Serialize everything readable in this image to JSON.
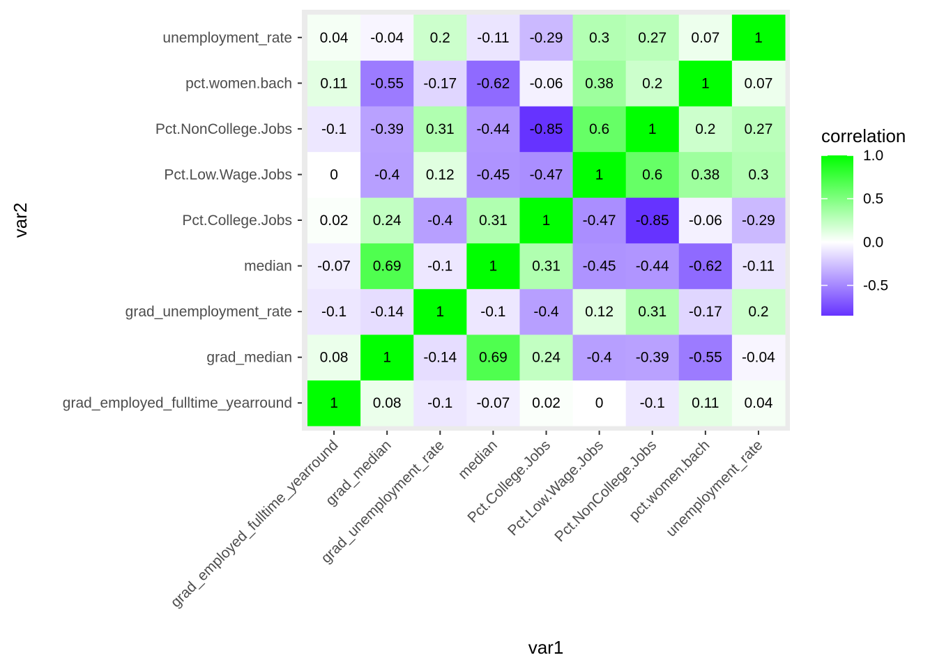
{
  "chart_data": {
    "type": "heatmap",
    "title": "",
    "xlabel": "var1",
    "ylabel": "var2",
    "variables": [
      "grad_employed_fulltime_yearround",
      "grad_median",
      "grad_unemployment_rate",
      "median",
      "Pct.College.Jobs",
      "Pct.Low.Wage.Jobs",
      "Pct.NonCollege.Jobs",
      "pct.women.bach",
      "unemployment_rate"
    ],
    "matrix": [
      [
        1,
        0.08,
        -0.1,
        -0.07,
        0.02,
        0,
        -0.1,
        0.11,
        0.04
      ],
      [
        0.08,
        1,
        -0.14,
        0.69,
        0.24,
        -0.4,
        -0.39,
        -0.55,
        -0.04
      ],
      [
        -0.1,
        -0.14,
        1,
        -0.1,
        -0.4,
        0.12,
        0.31,
        -0.17,
        0.2
      ],
      [
        -0.07,
        0.69,
        -0.1,
        1,
        0.31,
        -0.45,
        -0.44,
        -0.62,
        -0.11
      ],
      [
        0.02,
        0.24,
        -0.4,
        0.31,
        1,
        -0.47,
        -0.85,
        -0.06,
        -0.29
      ],
      [
        0,
        -0.4,
        0.12,
        -0.45,
        -0.47,
        1,
        0.6,
        0.38,
        0.3
      ],
      [
        -0.1,
        -0.39,
        0.31,
        -0.44,
        -0.85,
        0.6,
        1,
        0.2,
        0.27
      ],
      [
        0.11,
        -0.55,
        -0.17,
        -0.62,
        -0.06,
        0.38,
        0.2,
        1,
        0.07
      ],
      [
        0.04,
        -0.04,
        0.2,
        -0.11,
        -0.29,
        0.3,
        0.27,
        0.07,
        1
      ]
    ],
    "legend": {
      "title": "correlation",
      "ticks": [
        1.0,
        0.5,
        0.0,
        -0.5
      ],
      "tick_labels": [
        "1.0",
        "0.5",
        "0.0",
        "-0.5"
      ],
      "range": [
        -0.85,
        1.0
      ],
      "placement": "right"
    },
    "colors": {
      "low": "#6633ff",
      "mid": "#ffffff",
      "high": "#00ff00",
      "panel_background": "#ebebeb"
    }
  }
}
